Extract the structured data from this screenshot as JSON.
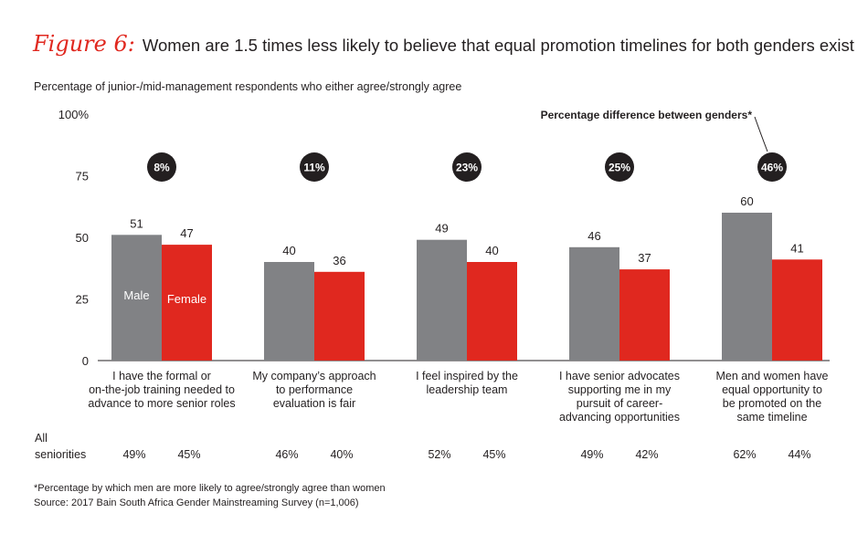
{
  "figure": {
    "label": "Figure 6:",
    "title": "Women are 1.5 times less likely to believe that equal promotion timelines for both genders exist",
    "subtitle": "Percentage of junior-/mid-management respondents who either agree/strongly agree"
  },
  "chart_data": {
    "type": "bar",
    "title": "Women are 1.5 times less likely to believe that equal promotion timelines for both genders exist",
    "ylabel": "Percentage of junior-/mid-management respondents who either agree/strongly agree",
    "ylim": [
      0,
      100
    ],
    "yticks": [
      "100%",
      "75",
      "50",
      "25",
      "0"
    ],
    "yticks_values": [
      100,
      75,
      50,
      25,
      0
    ],
    "categories": [
      [
        "I have the formal or",
        "on-the-job training needed to",
        "advance to more senior roles"
      ],
      [
        "My company’s approach",
        "to performance",
        "evaluation is fair"
      ],
      [
        "I feel inspired by the",
        "leadership team"
      ],
      [
        "I have senior advocates",
        "supporting me in my",
        "pursuit of career-",
        "advancing opportunities"
      ],
      [
        "Men and women have",
        "equal opportunity to",
        "be promoted on the",
        "same timeline"
      ]
    ],
    "series": [
      {
        "name": "Male",
        "color": "#818285",
        "values": [
          51,
          40,
          49,
          46,
          60
        ]
      },
      {
        "name": "Female",
        "color": "#e0281f",
        "values": [
          47,
          36,
          40,
          37,
          41
        ]
      }
    ],
    "differences": [
      "8%",
      "11%",
      "23%",
      "25%",
      "46%"
    ],
    "difference_label": "Percentage difference between genders*",
    "all_seniorities": {
      "label_line1": "All",
      "label_line2": "seniorities",
      "male": [
        "49%",
        "46%",
        "52%",
        "49%",
        "62%"
      ],
      "female": [
        "45%",
        "40%",
        "45%",
        "42%",
        "44%"
      ]
    }
  },
  "notes": {
    "footnote": "*Percentage by which men are more likely to agree/strongly agree than women",
    "source": "Source: 2017 Bain South Africa Gender Mainstreaming Survey (n=1,006)"
  }
}
